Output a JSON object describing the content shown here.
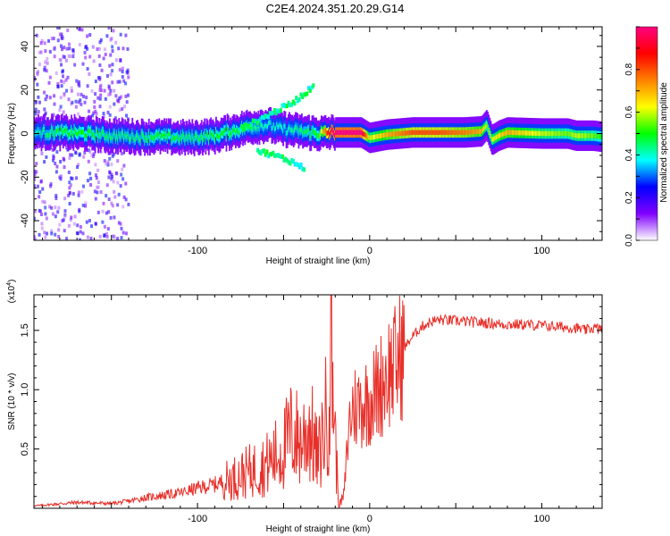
{
  "title": "C2E4.2024.351.20.29.G14",
  "chart_data": [
    {
      "type": "heatmap",
      "xlabel": "Height of straight line (km)",
      "ylabel": "Frequency (Hz)",
      "xlim": [
        -195,
        135
      ],
      "ylim": [
        -49,
        49
      ],
      "x_ticks": [
        -100,
        0,
        100
      ],
      "y_ticks": [
        -40,
        -20,
        0,
        20,
        40
      ],
      "colorbar": {
        "label": "Normalized spectral amplitude",
        "range": [
          0,
          1
        ],
        "ticks": [
          0.0,
          0.2,
          0.4,
          0.6,
          0.8
        ],
        "colormap": [
          "#ffffff",
          "#8000ff",
          "#0000ff",
          "#00ffff",
          "#00ff00",
          "#ffff00",
          "#ff8000",
          "#ff0000",
          "#ff0080"
        ]
      },
      "ridge": [
        {
          "x": -195,
          "f": 0.5,
          "a": 0.4
        },
        {
          "x": -180,
          "f": 0.5,
          "a": 0.5
        },
        {
          "x": -165,
          "f": 0.0,
          "a": 0.5
        },
        {
          "x": -150,
          "f": -1.0,
          "a": 0.45
        },
        {
          "x": -135,
          "f": -1.5,
          "a": 0.45
        },
        {
          "x": -120,
          "f": -1.5,
          "a": 0.5
        },
        {
          "x": -105,
          "f": -2.0,
          "a": 0.45
        },
        {
          "x": -90,
          "f": -1.0,
          "a": 0.5
        },
        {
          "x": -80,
          "f": 1.0,
          "a": 0.5
        },
        {
          "x": -70,
          "f": 3.0,
          "a": 0.45
        },
        {
          "x": -60,
          "f": 4.0,
          "a": 0.4
        },
        {
          "x": -50,
          "f": 2.0,
          "a": 0.4
        },
        {
          "x": -40,
          "f": 1.0,
          "a": 0.45
        },
        {
          "x": -30,
          "f": 0.0,
          "a": 0.5
        },
        {
          "x": -22,
          "f": 0.5,
          "a": 1.0
        },
        {
          "x": -5,
          "f": 0.5,
          "a": 1.0
        },
        {
          "x": 0,
          "f": -2.0,
          "a": 0.6
        },
        {
          "x": 10,
          "f": -0.5,
          "a": 0.7
        },
        {
          "x": 25,
          "f": 0.5,
          "a": 0.8
        },
        {
          "x": 40,
          "f": 0.5,
          "a": 0.8
        },
        {
          "x": 55,
          "f": 0.5,
          "a": 0.75
        },
        {
          "x": 65,
          "f": 1.0,
          "a": 0.7
        },
        {
          "x": 68,
          "f": 4.0,
          "a": 0.55
        },
        {
          "x": 71,
          "f": -3.0,
          "a": 0.6
        },
        {
          "x": 75,
          "f": -1.0,
          "a": 0.65
        },
        {
          "x": 80,
          "f": 0.5,
          "a": 0.7
        },
        {
          "x": 100,
          "f": 0.0,
          "a": 0.6
        },
        {
          "x": 115,
          "f": 0.0,
          "a": 0.55
        },
        {
          "x": 120,
          "f": -1.0,
          "a": 0.6
        },
        {
          "x": 130,
          "f": -1.0,
          "a": 0.55
        },
        {
          "x": 135,
          "f": -1.5,
          "a": 0.5
        }
      ],
      "branches": [
        {
          "x": [
            -75,
            -60,
            -45,
            -35,
            -32
          ],
          "f": [
            2,
            8,
            14,
            20,
            24
          ],
          "a": 0.35
        },
        {
          "x": [
            -65,
            -55,
            -45,
            -38
          ],
          "f": [
            -8,
            -10,
            -13,
            -16
          ],
          "a": 0.35
        }
      ]
    },
    {
      "type": "line",
      "xlabel": "Height of straight line (km)",
      "ylabel": "SNR (10 * v/v)",
      "multiplier_label": "(x10",
      "multiplier_exponent": "4",
      "multiplier_close": ")",
      "xlim": [
        -195,
        135
      ],
      "ylim": [
        0,
        18000
      ],
      "x_ticks": [
        -100,
        0,
        100
      ],
      "y_ticks": [
        5000,
        10000,
        15000
      ],
      "y_tick_labels": [
        "0.5",
        "1.0",
        "1.5"
      ],
      "series": [
        {
          "color": "#e8302a",
          "x": [
            -195,
            -170,
            -150,
            -140,
            -130,
            -120,
            -110,
            -100,
            -90,
            -80,
            -70,
            -60,
            -50,
            -45,
            -40,
            -35,
            -30,
            -25,
            -22,
            -20,
            -18,
            -15,
            -12,
            -10,
            -5,
            0,
            5,
            10,
            15,
            20,
            25,
            30,
            35,
            40,
            50,
            60,
            70,
            80,
            90,
            100,
            110,
            120,
            125,
            130,
            135
          ],
          "y": [
            200,
            500,
            400,
            600,
            900,
            1100,
            1300,
            1700,
            2000,
            2500,
            3100,
            3700,
            5000,
            6500,
            5500,
            7000,
            4000,
            8000,
            14000,
            6000,
            200,
            1000,
            7000,
            8500,
            8800,
            9200,
            10000,
            11500,
            12000,
            13500,
            14500,
            15300,
            15700,
            15900,
            15800,
            15700,
            15600,
            15500,
            15500,
            15400,
            15300,
            15200,
            15000,
            15200,
            15100
          ]
        }
      ]
    }
  ]
}
